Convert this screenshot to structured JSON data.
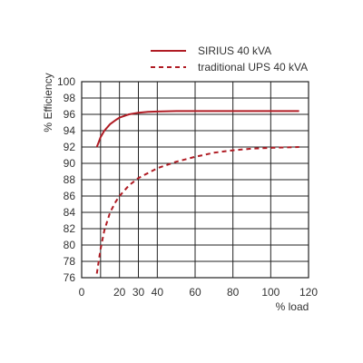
{
  "chart_data": {
    "type": "line",
    "xlabel": "% load",
    "ylabel": "% Efficiency",
    "xlim": [
      0,
      120
    ],
    "ylim": [
      76,
      100
    ],
    "x_ticks": [
      0,
      20,
      30,
      40,
      60,
      80,
      100,
      120
    ],
    "y_ticks": [
      76,
      78,
      80,
      82,
      84,
      86,
      88,
      90,
      92,
      94,
      96,
      98,
      100
    ],
    "x_grid": [
      10,
      20,
      30,
      40,
      60,
      80,
      100,
      120
    ],
    "grid": true,
    "legend_position": "top-right",
    "series": [
      {
        "name": "SIRIUS 40 kVA",
        "style": "solid",
        "color": "#b01c24",
        "x": [
          8,
          9,
          10,
          12,
          15,
          18,
          20,
          25,
          30,
          35,
          40,
          50,
          60,
          80,
          100,
          115
        ],
        "y": [
          92.0,
          92.6,
          93.2,
          94.0,
          94.8,
          95.3,
          95.6,
          96.0,
          96.2,
          96.3,
          96.35,
          96.4,
          96.4,
          96.4,
          96.4,
          96.4
        ]
      },
      {
        "name": "traditional UPS 40 kVA",
        "style": "dashed",
        "color": "#b01c24",
        "x": [
          8,
          10,
          12,
          15,
          18,
          20,
          25,
          30,
          35,
          40,
          50,
          60,
          70,
          80,
          90,
          100,
          115
        ],
        "y": [
          76.5,
          79.5,
          81.8,
          84.0,
          85.3,
          86.0,
          87.3,
          88.2,
          88.8,
          89.4,
          90.2,
          90.8,
          91.3,
          91.6,
          91.8,
          91.9,
          92.0
        ]
      }
    ]
  }
}
